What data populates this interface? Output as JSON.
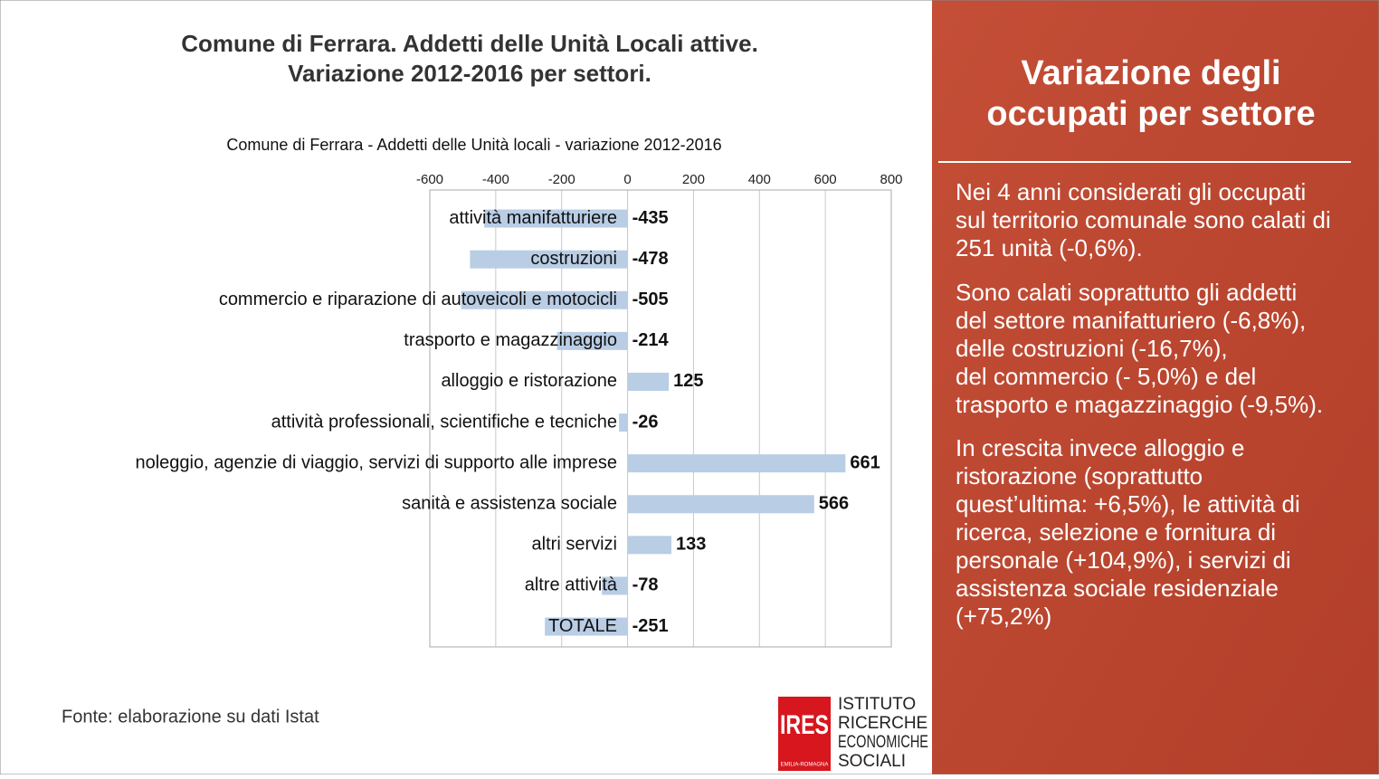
{
  "slide": {
    "title_lines": [
      "Comune di Ferrara. Addetti delle Unità Locali attive.",
      "Variazione 2012-2016 per settori."
    ],
    "source": "Fonte: elaborazione su dati Istat",
    "logo": {
      "mark": "IRES",
      "region": "EMILIA-ROMAGNA",
      "lines": [
        "ISTITUTO",
        "RICERCHE",
        "ECONOMICHE",
        "SOCIALI"
      ]
    },
    "panel": {
      "heading_lines": [
        "Variazione degli",
        "occupati per settore"
      ],
      "paragraphs": [
        [
          "Nei 4 anni considerati gli occupati",
          "sul territorio comunale sono calati di",
          "251 unità (-0,6%)."
        ],
        [
          "Sono  calati soprattutto gli addetti",
          "del settore manifatturiero (-6,8%),",
          "delle costruzioni (-16,7%),",
          "del commercio (- 5,0%) e del",
          "trasporto e magazzinaggio (-9,5%)."
        ],
        [
          "In crescita invece alloggio e",
          "ristorazione (soprattutto",
          "quest’ultima: +6,5%), le attività di",
          "ricerca, selezione e fornitura di",
          "personale (+104,9%), i servizi di",
          "assistenza sociale residenziale",
          "(+75,2%)"
        ]
      ]
    }
  },
  "chart_data": {
    "type": "hbar",
    "title": "Comune di Ferrara - Addetti delle Unità locali - variazione 2012-2016",
    "categories": [
      "attività manifatturiere",
      "costruzioni",
      "commercio e riparazione di autoveicoli e motocicli",
      "trasporto e magazzinaggio",
      "alloggio e ristorazione",
      "attività professionali, scientifiche e tecniche",
      "noleggio, agenzie di viaggio, servizi di supporto alle imprese",
      "sanità e assistenza sociale",
      "altri servizi",
      "altre attività",
      "TOTALE"
    ],
    "values": [
      -435,
      -478,
      -505,
      -214,
      125,
      -26,
      661,
      566,
      133,
      -78,
      -251
    ],
    "color": "#b9cde5",
    "xlim": [
      -600,
      800
    ],
    "xticks": [
      -600,
      -400,
      -200,
      0,
      200,
      400,
      600,
      800
    ],
    "grid": true
  }
}
